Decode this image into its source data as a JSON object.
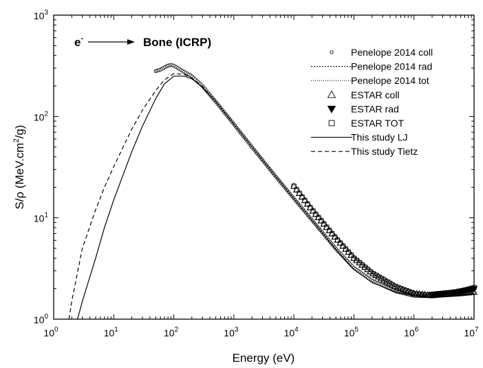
{
  "chart_data": {
    "type": "line",
    "title_particle": "e",
    "title_particle_sup": "-",
    "title_target": "Bone (ICRP)",
    "xlabel": "Energy (eV)",
    "ylabel_main": "S/ρ (MeV.cm",
    "ylabel_sup": "2",
    "ylabel_end": "/g)",
    "x_scale": "log",
    "y_scale": "log",
    "xlim": [
      1,
      10000000
    ],
    "ylim": [
      1,
      1000
    ],
    "x_ticks": [
      {
        "base": "10",
        "exp": "0"
      },
      {
        "base": "10",
        "exp": "1"
      },
      {
        "base": "10",
        "exp": "2"
      },
      {
        "base": "10",
        "exp": "3"
      },
      {
        "base": "10",
        "exp": "4"
      },
      {
        "base": "10",
        "exp": "5"
      },
      {
        "base": "10",
        "exp": "6"
      },
      {
        "base": "10",
        "exp": "7"
      }
    ],
    "y_ticks": [
      {
        "base": "10",
        "exp": "0"
      },
      {
        "base": "10",
        "exp": "1"
      },
      {
        "base": "10",
        "exp": "2"
      },
      {
        "base": "10",
        "exp": "3"
      }
    ],
    "legend_position": "top-right",
    "series": [
      {
        "name": "Penelope 2014 coll",
        "marker": "circle",
        "color": "#000000",
        "x": [
          50,
          60,
          70,
          80,
          90,
          100,
          120,
          150,
          200,
          300,
          500,
          1000,
          2000,
          5000,
          10000,
          20000,
          50000,
          100000,
          200000,
          500000,
          1000000,
          2000000,
          5000000,
          10000000
        ],
        "y": [
          280,
          290,
          305,
          318,
          322,
          318,
          298,
          275,
          250,
          200,
          140,
          84,
          50,
          25.5,
          15.5,
          9.5,
          4.95,
          3.2,
          2.4,
          1.88,
          1.7,
          1.68,
          1.75,
          1.82
        ]
      },
      {
        "name": "Penelope 2014 rad",
        "dash": "2,2",
        "color": "#000000",
        "x": [
          1000000,
          2000000,
          5000000,
          10000000
        ],
        "y": [
          1.7,
          1.72,
          1.88,
          2.05
        ]
      },
      {
        "name": "Penelope 2014 tot",
        "dash": "1,2",
        "color": "#000000",
        "x": [
          1000000,
          2000000,
          5000000,
          10000000
        ],
        "y": [
          1.72,
          1.75,
          1.92,
          2.12
        ]
      },
      {
        "name": "ESTAR coll",
        "marker": "triangle-up",
        "color": "#000000",
        "x": [
          10000,
          20000,
          50000,
          100000,
          200000,
          500000,
          1000000,
          2000000,
          5000000,
          10000000
        ],
        "y": [
          20.5,
          12,
          6.3,
          4.0,
          2.85,
          2.08,
          1.8,
          1.72,
          1.78,
          1.85
        ]
      },
      {
        "name": "ESTAR rad",
        "marker": "triangle-down",
        "color": "#000000",
        "x": [
          2000000,
          5000000,
          10000000
        ],
        "y": [
          1.75,
          1.85,
          2.0
        ]
      },
      {
        "name": "ESTAR TOT",
        "marker": "square",
        "color": "#000000",
        "x": [
          10000,
          20000,
          50000,
          100000,
          200000,
          500000,
          1000000,
          2000000,
          5000000,
          10000000
        ],
        "y": [
          20.5,
          12,
          6.3,
          4.0,
          2.85,
          2.08,
          1.78,
          1.7,
          1.82,
          2.05
        ]
      },
      {
        "name": "This study LJ",
        "dash": "",
        "color": "#000000",
        "x": [
          2.5,
          3,
          5,
          7,
          10,
          20,
          30,
          50,
          70,
          100,
          150,
          200,
          300,
          500,
          1000,
          2000,
          5000,
          10000,
          20000,
          50000,
          100000,
          200000,
          500000,
          1000000,
          2000000,
          5000000,
          10000000
        ],
        "y": [
          1.0,
          1.5,
          4.0,
          8.0,
          15,
          45,
          80,
          150,
          210,
          250,
          250,
          235,
          195,
          140,
          84,
          50,
          25.5,
          15.5,
          9.5,
          4.9,
          3.1,
          2.3,
          1.85,
          1.7,
          1.66,
          1.72,
          1.8
        ]
      },
      {
        "name": "This study Tietz",
        "dash": "6,4",
        "color": "#000000",
        "x": [
          1.8,
          2,
          3,
          5,
          7,
          10,
          20,
          30,
          50,
          70,
          100,
          150,
          200,
          300,
          500,
          1000
        ],
        "y": [
          1.0,
          1.5,
          5.0,
          12,
          20,
          32,
          75,
          115,
          180,
          230,
          265,
          260,
          240,
          198,
          140,
          84
        ]
      }
    ]
  }
}
